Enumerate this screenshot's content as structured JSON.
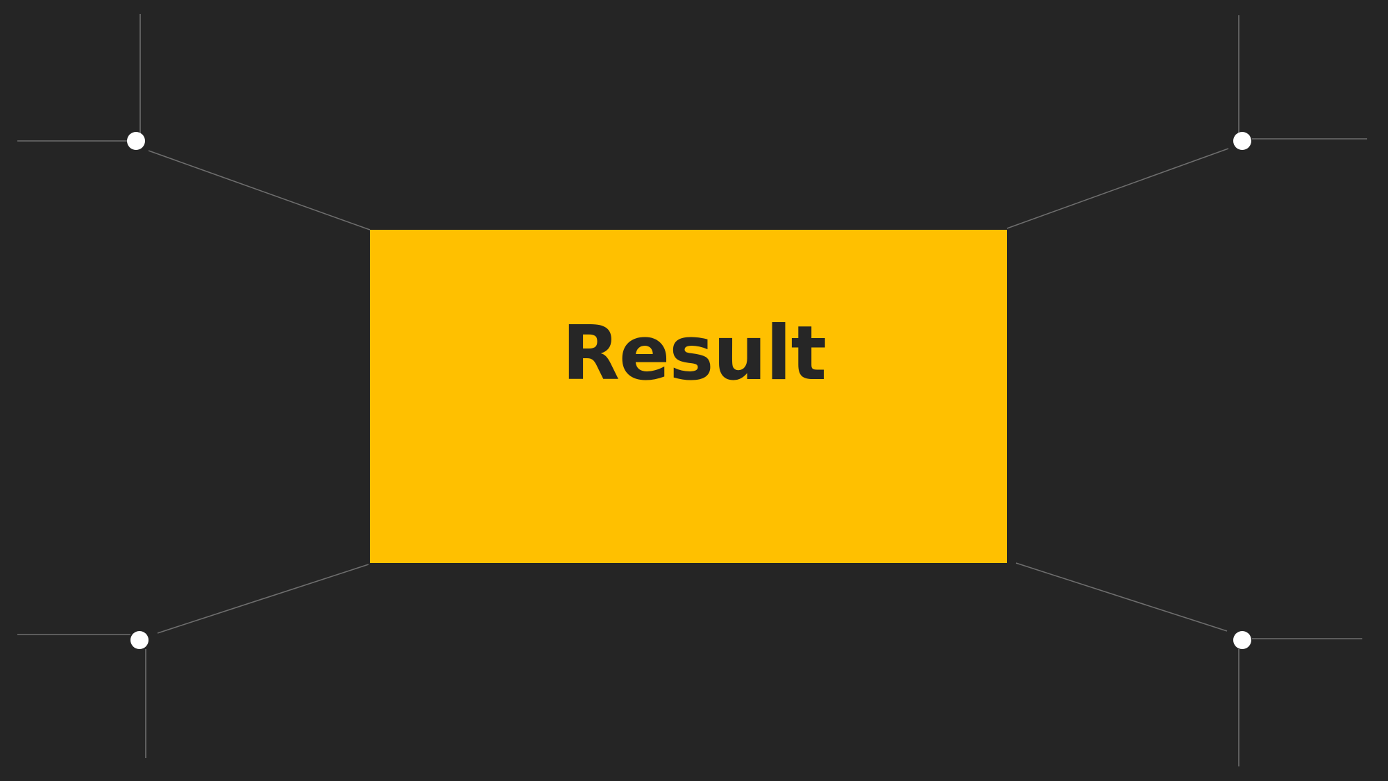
{
  "panel": {
    "title": "Result"
  },
  "colors": {
    "background": "#252525",
    "panel": "#FFC000",
    "title_text": "#262626",
    "connector_line": "#6E6E6E",
    "node_dot": "#FFFFFF"
  }
}
